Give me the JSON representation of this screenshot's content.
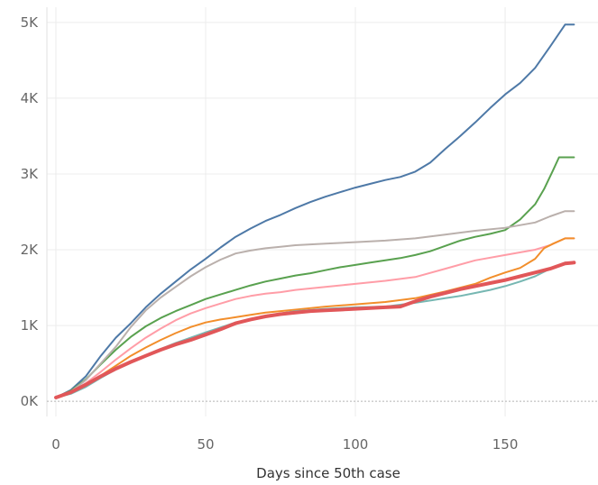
{
  "chart_data": {
    "type": "line",
    "title": "",
    "xlabel": "Days since 50th case",
    "ylabel": "",
    "xlim": [
      -3,
      181
    ],
    "ylim": [
      -200,
      5200
    ],
    "x_ticks": [
      0,
      50,
      100,
      150
    ],
    "x_tick_labels": [
      "0",
      "50",
      "100",
      "150"
    ],
    "y_ticks": [
      0,
      1000,
      2000,
      3000,
      4000,
      5000
    ],
    "y_tick_labels": [
      "0K",
      "1K",
      "2K",
      "3K",
      "4K",
      "5K"
    ],
    "grid": true,
    "baseline": 0,
    "series": [
      {
        "color": "#4e79a7",
        "width": 2,
        "x": [
          0,
          5,
          10,
          15,
          20,
          25,
          30,
          35,
          40,
          45,
          50,
          55,
          60,
          65,
          70,
          75,
          80,
          85,
          90,
          95,
          100,
          105,
          110,
          115,
          120,
          125,
          130,
          135,
          140,
          145,
          150,
          155,
          160,
          165,
          170,
          173
        ],
        "y": [
          50,
          150,
          330,
          600,
          840,
          1030,
          1240,
          1420,
          1580,
          1740,
          1880,
          2030,
          2170,
          2280,
          2380,
          2460,
          2550,
          2630,
          2700,
          2760,
          2820,
          2870,
          2920,
          2960,
          3030,
          3150,
          3330,
          3500,
          3680,
          3870,
          4050,
          4200,
          4400,
          4680,
          4970,
          4970
        ]
      },
      {
        "color": "#59a14f",
        "width": 2,
        "x": [
          0,
          5,
          10,
          15,
          20,
          25,
          30,
          35,
          40,
          45,
          50,
          55,
          60,
          65,
          70,
          75,
          80,
          85,
          90,
          95,
          100,
          105,
          110,
          115,
          120,
          125,
          130,
          135,
          140,
          145,
          150,
          155,
          160,
          163,
          166,
          168,
          173
        ],
        "y": [
          50,
          140,
          290,
          490,
          680,
          850,
          990,
          1100,
          1190,
          1270,
          1350,
          1410,
          1470,
          1530,
          1580,
          1620,
          1660,
          1690,
          1730,
          1770,
          1800,
          1830,
          1860,
          1890,
          1930,
          1980,
          2050,
          2120,
          2170,
          2210,
          2260,
          2400,
          2600,
          2800,
          3050,
          3220,
          3220
        ]
      },
      {
        "color": "#bab0ac",
        "width": 2,
        "x": [
          0,
          5,
          10,
          15,
          20,
          25,
          30,
          35,
          40,
          45,
          50,
          55,
          60,
          65,
          70,
          75,
          80,
          90,
          100,
          110,
          120,
          130,
          140,
          150,
          160,
          165,
          170,
          173
        ],
        "y": [
          50,
          130,
          280,
          500,
          720,
          980,
          1200,
          1370,
          1510,
          1650,
          1770,
          1870,
          1950,
          1990,
          2020,
          2040,
          2060,
          2080,
          2100,
          2120,
          2150,
          2200,
          2250,
          2290,
          2360,
          2440,
          2510,
          2510
        ]
      },
      {
        "color": "#ff9da7",
        "width": 2,
        "x": [
          0,
          5,
          10,
          15,
          20,
          25,
          30,
          35,
          40,
          45,
          50,
          55,
          60,
          65,
          70,
          75,
          80,
          90,
          100,
          110,
          120,
          130,
          140,
          150,
          160,
          165,
          170,
          173
        ],
        "y": [
          50,
          120,
          240,
          390,
          550,
          700,
          840,
          960,
          1070,
          1160,
          1230,
          1290,
          1350,
          1390,
          1420,
          1440,
          1470,
          1510,
          1550,
          1590,
          1640,
          1750,
          1860,
          1930,
          2000,
          2060,
          2150,
          2150
        ]
      },
      {
        "color": "#f28e2b",
        "width": 2,
        "x": [
          0,
          5,
          10,
          15,
          20,
          25,
          30,
          35,
          40,
          45,
          50,
          55,
          60,
          65,
          70,
          75,
          80,
          90,
          100,
          110,
          120,
          130,
          140,
          145,
          150,
          155,
          160,
          163,
          166,
          170,
          173
        ],
        "y": [
          50,
          110,
          210,
          340,
          470,
          600,
          710,
          810,
          900,
          980,
          1040,
          1080,
          1110,
          1140,
          1170,
          1190,
          1210,
          1250,
          1280,
          1310,
          1360,
          1450,
          1550,
          1630,
          1700,
          1760,
          1880,
          2020,
          2080,
          2150,
          2150
        ]
      },
      {
        "color": "#76b7b2",
        "width": 2,
        "x": [
          0,
          5,
          10,
          15,
          20,
          25,
          30,
          40,
          50,
          60,
          70,
          80,
          90,
          100,
          110,
          120,
          125,
          130,
          135,
          140,
          145,
          150,
          155,
          160,
          165,
          170,
          173
        ],
        "y": [
          50,
          100,
          190,
          310,
          420,
          520,
          610,
          770,
          910,
          1040,
          1130,
          1190,
          1220,
          1240,
          1250,
          1300,
          1330,
          1360,
          1390,
          1430,
          1470,
          1520,
          1580,
          1650,
          1750,
          1830,
          1830
        ]
      },
      {
        "color": "#e15759",
        "width": 4,
        "x": [
          0,
          5,
          10,
          15,
          20,
          25,
          30,
          35,
          40,
          45,
          50,
          55,
          60,
          65,
          70,
          75,
          80,
          85,
          90,
          95,
          100,
          105,
          110,
          115,
          120,
          125,
          130,
          135,
          140,
          145,
          150,
          155,
          160,
          165,
          170,
          173
        ],
        "y": [
          50,
          120,
          220,
          330,
          430,
          520,
          600,
          680,
          750,
          810,
          880,
          950,
          1030,
          1080,
          1120,
          1150,
          1170,
          1190,
          1200,
          1210,
          1220,
          1230,
          1240,
          1250,
          1320,
          1380,
          1430,
          1480,
          1520,
          1560,
          1600,
          1650,
          1700,
          1750,
          1820,
          1830
        ]
      }
    ]
  }
}
